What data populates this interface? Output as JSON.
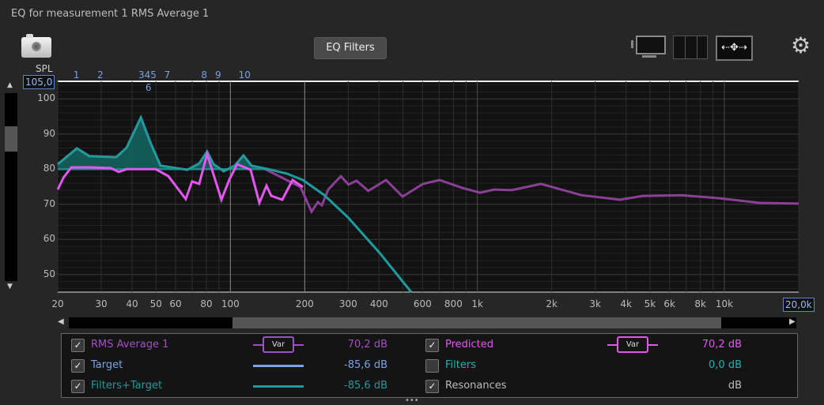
{
  "window": {
    "title": "EQ for measurement 1 RMS Average 1"
  },
  "toolbar": {
    "eq_filters_label": "EQ Filters",
    "icons": [
      "camera-icon",
      "display-icon",
      "columns-icon",
      "pan-arrows-icon",
      "gear-icon"
    ]
  },
  "axis": {
    "y_label": "SPL",
    "y_top_value": "105,0",
    "y_ticks": [
      "100",
      "90",
      "80",
      "70",
      "60",
      "50"
    ],
    "x_ticks": [
      "20",
      "30",
      "40",
      "50",
      "60",
      "80",
      "100",
      "200",
      "300",
      "400",
      "600",
      "800",
      "1k",
      "2k",
      "3k",
      "4k",
      "5k",
      "6k",
      "8k",
      "10k"
    ],
    "x_right_value": "20,0k"
  },
  "filter_markers": [
    {
      "label": "1",
      "freq": 24
    },
    {
      "label": "2",
      "freq": 30
    },
    {
      "label": "345",
      "freq": 44
    },
    {
      "label": "6",
      "freq": 47
    },
    {
      "label": "7",
      "freq": 56
    },
    {
      "label": "8",
      "freq": 79
    },
    {
      "label": "9",
      "freq": 90
    },
    {
      "label": "10",
      "freq": 112
    }
  ],
  "chart_data": {
    "type": "line",
    "x_scale": "log",
    "xlim": [
      20,
      20000
    ],
    "ylim": [
      45,
      105
    ],
    "grid": true,
    "series": [
      {
        "name": "RMS Average 1",
        "color": "#8b3f96",
        "points": [
          [
            20,
            81.4
          ],
          [
            23.9,
            85.9
          ],
          [
            26.9,
            83.7
          ],
          [
            34.5,
            83.4
          ],
          [
            38,
            86.1
          ],
          [
            43.4,
            94.7
          ],
          [
            47.4,
            87.7
          ],
          [
            52.1,
            81
          ],
          [
            67,
            79.8
          ],
          [
            74.8,
            81.6
          ],
          [
            80.5,
            85
          ],
          [
            85.5,
            81.4
          ],
          [
            94,
            79.4
          ],
          [
            104.2,
            81
          ],
          [
            113,
            83.9
          ],
          [
            121.7,
            81
          ],
          [
            140,
            79.8
          ],
          [
            192.3,
            74.9
          ],
          [
            213.2,
            67.9
          ],
          [
            226,
            70.6
          ],
          [
            234.6,
            69.7
          ],
          [
            249,
            74.2
          ],
          [
            280,
            78
          ],
          [
            301,
            75.6
          ],
          [
            324,
            76.7
          ],
          [
            362,
            73.8
          ],
          [
            427,
            76.9
          ],
          [
            498,
            72.2
          ],
          [
            603,
            75.8
          ],
          [
            703,
            76.9
          ],
          [
            865,
            74.7
          ],
          [
            1025,
            73.3
          ],
          [
            1170,
            74.2
          ],
          [
            1377,
            74
          ],
          [
            1809,
            75.8
          ],
          [
            2636,
            72.6
          ],
          [
            3778,
            71.3
          ],
          [
            4677,
            72.4
          ],
          [
            6714,
            72.6
          ],
          [
            9640,
            71.7
          ],
          [
            13840,
            70.4
          ],
          [
            20000,
            70.2
          ]
        ]
      },
      {
        "name": "Filters+Target",
        "color": "#1f9b9b",
        "points": [
          [
            20,
            81.4
          ],
          [
            23.9,
            85.9
          ],
          [
            26.9,
            83.7
          ],
          [
            34.5,
            83.4
          ],
          [
            38,
            86.1
          ],
          [
            43.4,
            94.7
          ],
          [
            47.4,
            87.7
          ],
          [
            52.1,
            81
          ],
          [
            67,
            79.8
          ],
          [
            74.8,
            81.6
          ],
          [
            80.5,
            85
          ],
          [
            85.5,
            81.4
          ],
          [
            94,
            79.4
          ],
          [
            104.2,
            81
          ],
          [
            113,
            83.9
          ],
          [
            121.7,
            81
          ],
          [
            143,
            80
          ],
          [
            169.8,
            78.7
          ],
          [
            196.6,
            76.9
          ],
          [
            240,
            72.6
          ],
          [
            299,
            66.3
          ],
          [
            402,
            56.2
          ],
          [
            540,
            45
          ]
        ]
      },
      {
        "name": "Target",
        "color": "#1f8a8a",
        "points": [
          [
            20,
            80
          ],
          [
            143,
            80
          ],
          [
            169.8,
            78.7
          ],
          [
            196.6,
            76.9
          ],
          [
            240,
            72.6
          ],
          [
            299,
            66.3
          ],
          [
            402,
            56.2
          ],
          [
            540,
            45
          ]
        ]
      },
      {
        "name": "Predicted",
        "color": "#e257f0",
        "points": [
          [
            20,
            74.2
          ],
          [
            21.1,
            77.6
          ],
          [
            22.7,
            80.5
          ],
          [
            26.9,
            80.5
          ],
          [
            32.8,
            80.3
          ],
          [
            35.3,
            79.2
          ],
          [
            38,
            80
          ],
          [
            49.9,
            80
          ],
          [
            56.1,
            78
          ],
          [
            66,
            71.5
          ],
          [
            70,
            76.5
          ],
          [
            74.8,
            75.8
          ],
          [
            80.5,
            84.3
          ],
          [
            92,
            71.3
          ],
          [
            99.1,
            77.1
          ],
          [
            106.6,
            81.4
          ],
          [
            120.8,
            79.8
          ],
          [
            131.1,
            70.4
          ],
          [
            140,
            75.3
          ],
          [
            146.4,
            72.4
          ],
          [
            162.2,
            71.3
          ],
          [
            178.6,
            76.9
          ],
          [
            196.6,
            74.9
          ]
        ]
      }
    ]
  },
  "legend": {
    "left": [
      {
        "label": "RMS Average 1",
        "checked": true,
        "style": "Var",
        "value": "70,2 dB",
        "color": "#a24fc4"
      },
      {
        "label": "Target",
        "checked": true,
        "style": "line",
        "value": "-85,6 dB",
        "color": "#7ba2e6"
      },
      {
        "label": "Filters+Target",
        "checked": true,
        "style": "line",
        "value": "-85,6 dB",
        "color": "#1f9b9b"
      }
    ],
    "right": [
      {
        "label": "Predicted",
        "checked": true,
        "style": "Var",
        "value": "70,2 dB",
        "color": "#e257f0"
      },
      {
        "label": "Filters",
        "checked": false,
        "style": "none",
        "value": "0,0 dB",
        "color": "#20b3b3"
      },
      {
        "label": "Resonances",
        "checked": true,
        "style": "none",
        "value": "dB",
        "color": "#bbbbbb"
      }
    ]
  }
}
